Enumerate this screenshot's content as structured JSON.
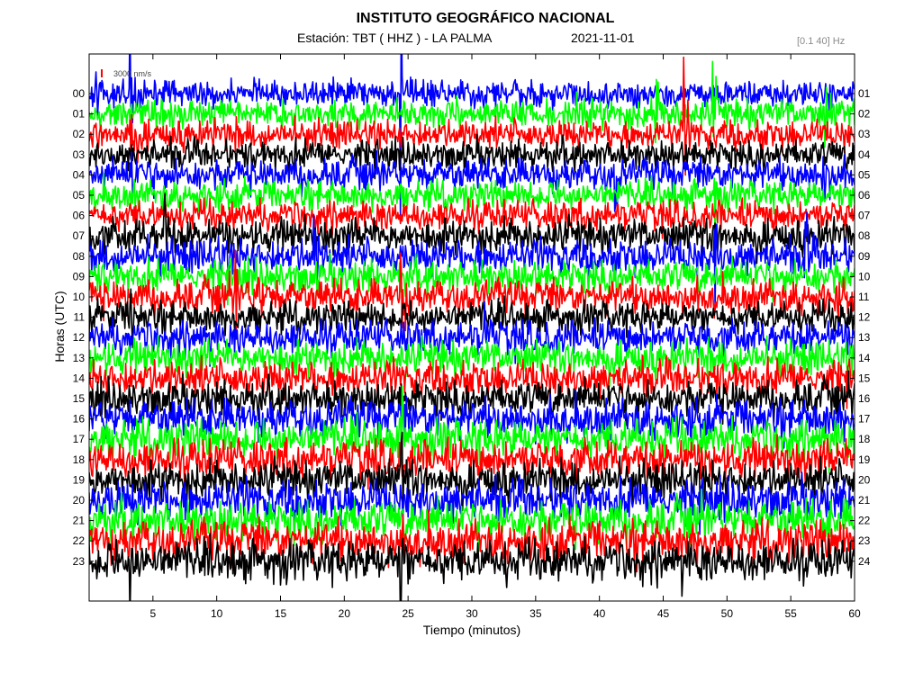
{
  "header": {
    "title": "INSTITUTO GEOGRÁFICO NACIONAL",
    "station": "Estación:  TBT ( HHZ ) - LA PALMA",
    "date": "2021-11-01",
    "filter_band": "[0.1 40] Hz"
  },
  "chart_data": {
    "type": "line",
    "title": "INSTITUTO GEOGRÁFICO NACIONAL",
    "xlabel": "Tiempo (minutos)",
    "ylabel": "Horas (UTC)",
    "xlim": [
      0,
      60
    ],
    "x_ticks": [
      "5",
      "10",
      "15",
      "20",
      "25",
      "30",
      "35",
      "40",
      "45",
      "50",
      "55",
      "60"
    ],
    "x_tick_values": [
      5,
      10,
      15,
      20,
      25,
      30,
      35,
      40,
      45,
      50,
      55,
      60
    ],
    "left_labels": [
      "00",
      "01",
      "02",
      "03",
      "04",
      "05",
      "06",
      "07",
      "08",
      "09",
      "10",
      "11",
      "12",
      "13",
      "14",
      "15",
      "16",
      "17",
      "18",
      "19",
      "20",
      "21",
      "22",
      "23"
    ],
    "right_labels": [
      "01",
      "02",
      "03",
      "04",
      "05",
      "06",
      "07",
      "08",
      "09",
      "10",
      "11",
      "12",
      "13",
      "14",
      "15",
      "16",
      "17",
      "18",
      "19",
      "20",
      "21",
      "22",
      "23",
      "24"
    ],
    "scale_bar_label": "3000 nm/s",
    "trace_colors": [
      "#0000ff",
      "#00ff00",
      "#ff0000",
      "#000000"
    ],
    "noise_level": [
      0.55,
      0.6,
      0.6,
      0.6,
      0.65,
      0.6,
      0.62,
      0.7,
      0.72,
      0.7,
      0.7,
      0.65,
      0.7,
      0.72,
      0.75,
      0.75,
      0.8,
      0.82,
      0.8,
      0.78,
      0.85,
      0.85,
      0.85,
      0.85
    ],
    "events": [
      {
        "hour": 0,
        "minute": 0.5,
        "amp": 3.0
      },
      {
        "hour": 0,
        "minute": 3.2,
        "amp": 3.5
      },
      {
        "hour": 0,
        "minute": 24.4,
        "amp": 5.0
      },
      {
        "hour": 1,
        "minute": 44.3,
        "amp": 3.0
      },
      {
        "hour": 1,
        "minute": 48.9,
        "amp": 2.0
      },
      {
        "hour": 1,
        "minute": 57.7,
        "amp": 1.5
      },
      {
        "hour": 2,
        "minute": 3.2,
        "amp": 2.5
      },
      {
        "hour": 2,
        "minute": 46.6,
        "amp": 3.2
      },
      {
        "hour": 4,
        "minute": 3.2,
        "amp": 2.5
      },
      {
        "hour": 4,
        "minute": 41.2,
        "amp": 2.0
      },
      {
        "hour": 4,
        "minute": 57.5,
        "amp": 2.4
      },
      {
        "hour": 5,
        "minute": 49.0,
        "amp": 2.2
      },
      {
        "hour": 7,
        "minute": 5.9,
        "amp": 2.2
      },
      {
        "hour": 8,
        "minute": 9.7,
        "amp": 2.2
      },
      {
        "hour": 8,
        "minute": 17.6,
        "amp": 2.0
      },
      {
        "hour": 8,
        "minute": 49.0,
        "amp": 2.6
      },
      {
        "hour": 8,
        "minute": 56.1,
        "amp": 2.2
      },
      {
        "hour": 10,
        "minute": 11.5,
        "amp": 1.6
      },
      {
        "hour": 10,
        "minute": 13.2,
        "amp": 2.0
      },
      {
        "hour": 10,
        "minute": 24.4,
        "amp": 3.5
      },
      {
        "hour": 11,
        "minute": 3.2,
        "amp": 3.0
      },
      {
        "hour": 12,
        "minute": 31.0,
        "amp": 1.6
      },
      {
        "hour": 17,
        "minute": 24.5,
        "amp": 2.2
      },
      {
        "hour": 19,
        "minute": 24.5,
        "amp": 3.6
      },
      {
        "hour": 23,
        "minute": 3.2,
        "amp": 1.5
      },
      {
        "hour": 23,
        "minute": 24.4,
        "amp": 3.0
      }
    ]
  }
}
